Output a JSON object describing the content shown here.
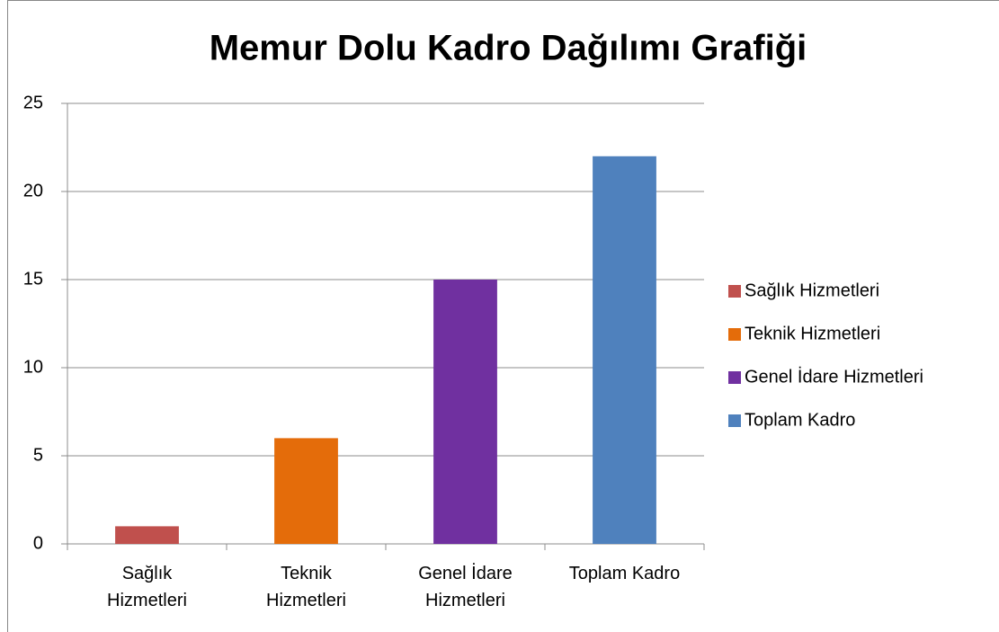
{
  "chart_data": {
    "type": "bar",
    "title": "Memur Dolu Kadro Dağılımı Grafiği",
    "categories": [
      "Sağlık Hizmetleri",
      "Teknik Hizmetleri",
      "Genel İdare Hizmetleri",
      "Toplam Kadro"
    ],
    "values": [
      1,
      6,
      15,
      22
    ],
    "colors": [
      "#c0504d",
      "#e46c0a",
      "#7030a0",
      "#4f81bd"
    ],
    "ylim": [
      0,
      25
    ],
    "yticks": [
      0,
      5,
      10,
      15,
      20,
      25
    ],
    "grid": true,
    "legend": "right"
  }
}
